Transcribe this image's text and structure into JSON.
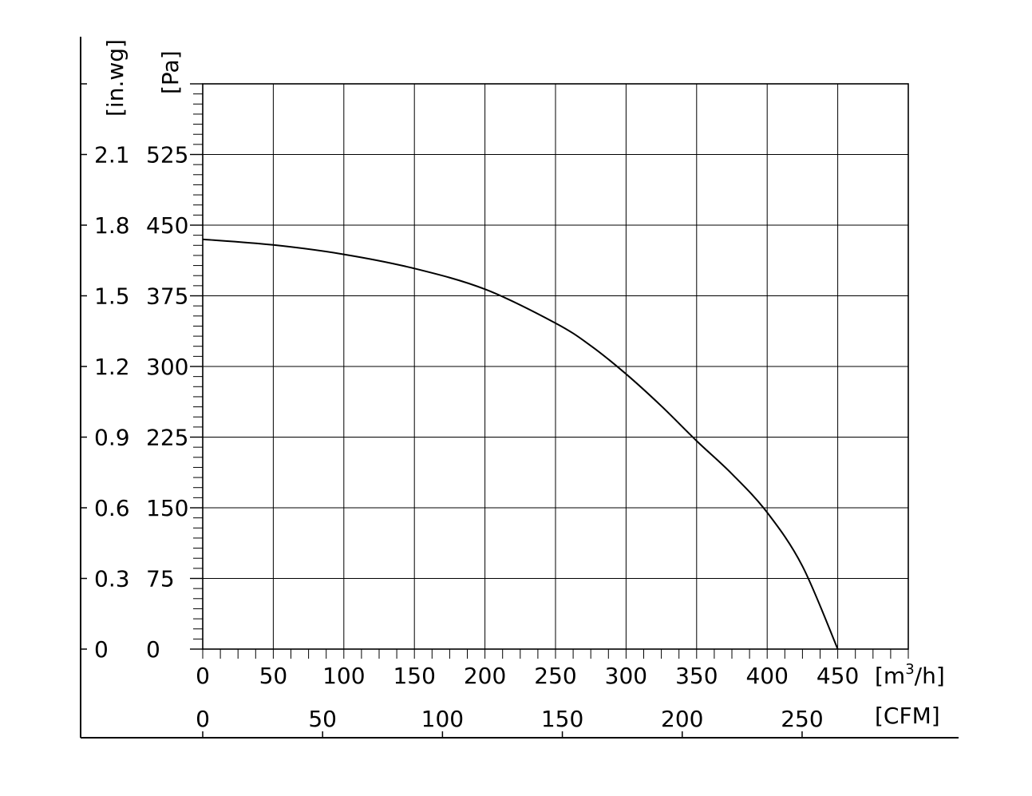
{
  "chart_data": {
    "type": "line",
    "title": "",
    "xlabel": "",
    "ylabel": "",
    "x_unit": "[m",
    "x_unit_sup": "3",
    "x_unit_tail": "/h]",
    "x2_unit": "[CFM]",
    "y_unit": "[Pa]",
    "y2_unit": "[in.wg]",
    "xlim": [
      0,
      500
    ],
    "ylim": [
      0,
      600
    ],
    "x_ticks": [
      0,
      50,
      100,
      150,
      200,
      250,
      300,
      350,
      400,
      450
    ],
    "x_tick_labels": [
      "0",
      "50",
      "100",
      "150",
      "200",
      "250",
      "300",
      "350",
      "400",
      "450"
    ],
    "x2_ticks_cfm": [
      0,
      50,
      100,
      150,
      200,
      250
    ],
    "x2_tick_labels": [
      "0",
      "50",
      "100",
      "150",
      "200",
      "250"
    ],
    "y_ticks": [
      0,
      75,
      150,
      225,
      300,
      375,
      450,
      525
    ],
    "y_tick_labels": [
      "0",
      "75",
      "150",
      "225",
      "300",
      "375",
      "450",
      "525"
    ],
    "y2_tick_labels": [
      "0",
      "0.3",
      "0.6",
      "0.9",
      "1.2",
      "1.5",
      "1.8",
      "2.1"
    ],
    "grid": true,
    "series": [
      {
        "x": [
          0,
          50,
          100,
          150,
          200,
          250,
          275,
          300,
          325,
          350,
          375,
          400,
          425,
          450
        ],
        "values": [
          435,
          429,
          419,
          404,
          382,
          346,
          322,
          292,
          258,
          221,
          186,
          145,
          88,
          0
        ]
      }
    ]
  }
}
